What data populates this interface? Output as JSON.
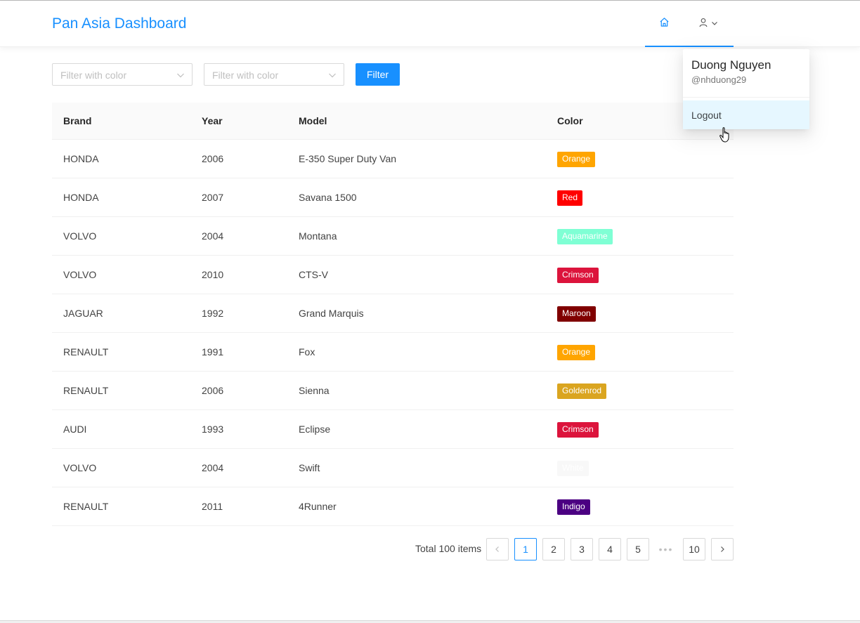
{
  "header": {
    "title": "Pan Asia Dashboard",
    "home_icon": "home-icon",
    "user_icon": "user-icon",
    "chevron_icon": "chevron-down-icon",
    "accent_color": "#1890ff"
  },
  "filters": {
    "select1_placeholder": "Filter with color",
    "select2_placeholder": "Filter with color",
    "filter_button_label": "Filter"
  },
  "table": {
    "columns": [
      "Brand",
      "Year",
      "Model",
      "Color"
    ],
    "rows": [
      {
        "brand": "HONDA",
        "year": "2006",
        "model": "E-350 Super Duty Van",
        "color": "Orange",
        "color_hex": "#ffa500",
        "text_hex": "#ffffff"
      },
      {
        "brand": "HONDA",
        "year": "2007",
        "model": "Savana 1500",
        "color": "Red",
        "color_hex": "#ff0000",
        "text_hex": "#ffffff"
      },
      {
        "brand": "VOLVO",
        "year": "2004",
        "model": "Montana",
        "color": "Aquamarine",
        "color_hex": "#7fffd4",
        "text_hex": "#ffffff"
      },
      {
        "brand": "VOLVO",
        "year": "2010",
        "model": "CTS-V",
        "color": "Crimson",
        "color_hex": "#dc143c",
        "text_hex": "#ffffff"
      },
      {
        "brand": "JAGUAR",
        "year": "1992",
        "model": "Grand Marquis",
        "color": "Maroon",
        "color_hex": "#800000",
        "text_hex": "#ffffff"
      },
      {
        "brand": "RENAULT",
        "year": "1991",
        "model": "Fox",
        "color": "Orange",
        "color_hex": "#ffa500",
        "text_hex": "#ffffff"
      },
      {
        "brand": "RENAULT",
        "year": "2006",
        "model": "Sienna",
        "color": "Goldenrod",
        "color_hex": "#daa520",
        "text_hex": "#ffffff"
      },
      {
        "brand": "AUDI",
        "year": "1993",
        "model": "Eclipse",
        "color": "Crimson",
        "color_hex": "#dc143c",
        "text_hex": "#ffffff"
      },
      {
        "brand": "VOLVO",
        "year": "2004",
        "model": "Swift",
        "color": "White",
        "color_hex": "#f8f8f8",
        "text_hex": "#ffffff"
      },
      {
        "brand": "RENAULT",
        "year": "2011",
        "model": "4Runner",
        "color": "Indigo",
        "color_hex": "#4b0082",
        "text_hex": "#ffffff"
      }
    ]
  },
  "pagination": {
    "total_text": "Total 100 items",
    "pages": [
      "1",
      "2",
      "3",
      "4",
      "5"
    ],
    "ellipsis": "•••",
    "last_page": "10",
    "current_page": "1",
    "prev_icon": "chevron-left-icon",
    "next_icon": "chevron-right-icon"
  },
  "user_menu": {
    "name": "Duong Nguyen",
    "handle": "@nhduong29",
    "logout_label": "Logout"
  }
}
